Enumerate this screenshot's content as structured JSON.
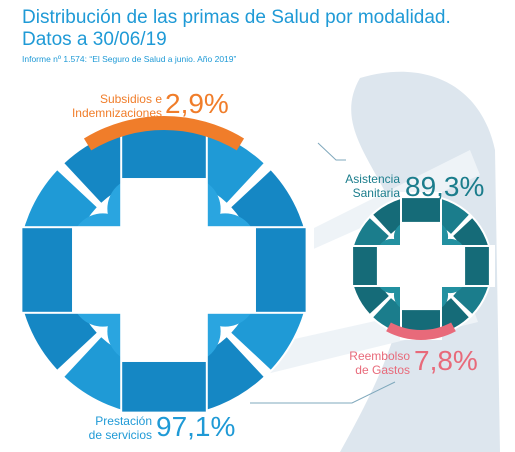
{
  "title_line1": "Distribución de las primas de Salud por modalidad.",
  "title_line2": "Datos a 30/06/19",
  "source": "Informe nº 1.574: “El Seguro de Salud a junio. Año 2019”",
  "colors": {
    "prestacion": "#1f9ad6",
    "subsidios": "#f07d2a",
    "asistencia": "#1b7d8c",
    "reembolso": "#e86a7a",
    "shadow": "#dde6ee"
  },
  "chart_data": {
    "type": "pie",
    "title": "Distribución de las primas de Salud por modalidad. Datos a 30/06/19",
    "groups": [
      {
        "name": "Prestación de servicios",
        "value": 97.1,
        "value_label": "97,1%",
        "sub": {
          "name": "Subsidios e Indemnizaciones",
          "value": 2.9,
          "value_label": "2,9%"
        }
      },
      {
        "name": "Asistencia Sanitaria",
        "value": 89.3,
        "value_label": "89,3%",
        "sub": {
          "name": "Reembolso de Gastos",
          "value": 7.8,
          "value_label": "7,8%"
        }
      }
    ]
  },
  "labels": {
    "subsidios": [
      "Subsidios e",
      "Indemnizaciones"
    ],
    "prestacion": [
      "Prestación",
      "de servicios"
    ],
    "asistencia": [
      "Asistencia",
      "Sanitaria"
    ],
    "reembolso": [
      "Reembolso",
      "de Gastos"
    ]
  }
}
